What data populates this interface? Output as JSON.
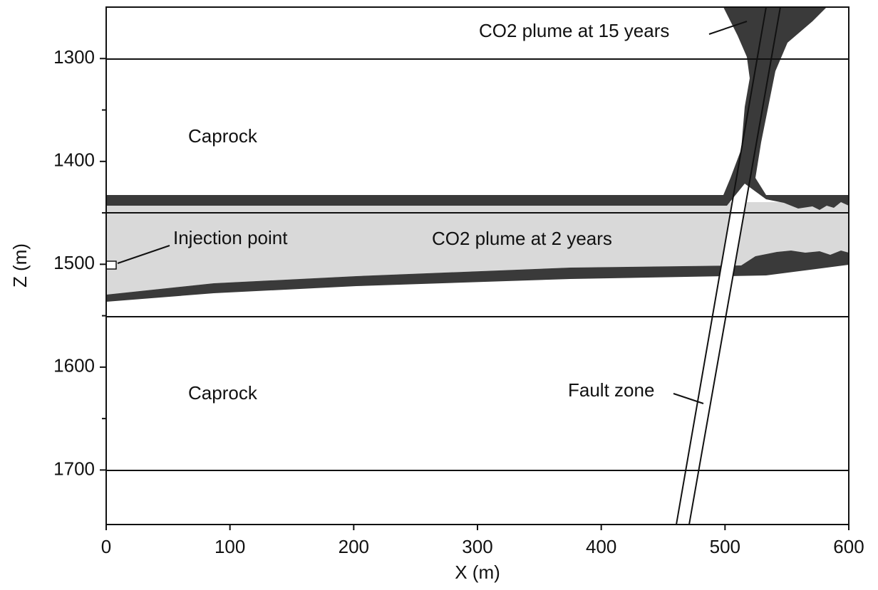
{
  "chart_data": {
    "type": "cross-section",
    "xlabel": "X (m)",
    "ylabel": "Z (m)",
    "xlim": [
      0,
      600
    ],
    "xticks": [
      0,
      100,
      200,
      300,
      400,
      500,
      600
    ],
    "ylim": [
      1250,
      1753
    ],
    "yticks": [
      1300,
      1400,
      1500,
      1600,
      1700
    ],
    "yminorticks": [
      1350,
      1450,
      1550,
      1650
    ],
    "y_inverted": true,
    "annotations": [
      "CO2 plume at 15 years",
      "Caprock",
      "Injection point",
      "CO2 plume at 2 years",
      "Caprock",
      "Fault zone"
    ]
  }
}
